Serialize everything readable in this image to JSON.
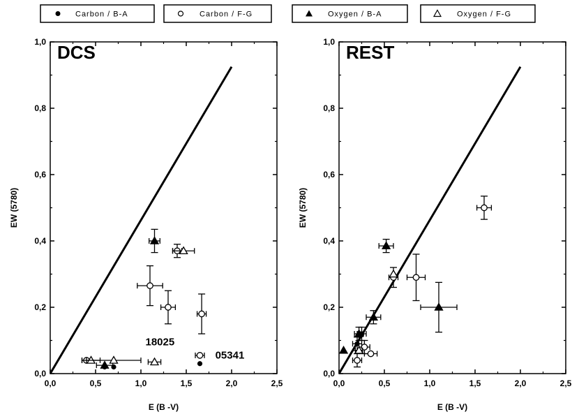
{
  "legend": [
    {
      "label": "Carbon / B-A",
      "marker": "filled-circle"
    },
    {
      "label": "Carbon / F-G",
      "marker": "open-circle"
    },
    {
      "label": "Oxygen / B-A",
      "marker": "filled-triangle"
    },
    {
      "label": "Oxygen / F-G",
      "marker": "open-triangle"
    }
  ],
  "chart_data": [
    {
      "type": "scatter",
      "title": "DCS",
      "xlabel": "E (B -V)",
      "ylabel": "EW (5780)",
      "xlim": [
        0.0,
        2.5
      ],
      "ylim": [
        0.0,
        1.0
      ],
      "xticks": [
        "0,0",
        "0,5",
        "1,0",
        "1,5",
        "2,0",
        "2,5"
      ],
      "yticks": [
        "0,0",
        "0,2",
        "0,4",
        "0,6",
        "0,8",
        "1,0"
      ],
      "line": {
        "x": [
          0.0,
          2.0
        ],
        "y": [
          0.0,
          0.925
        ]
      },
      "annotations": [
        {
          "text": "18025",
          "x": 1.05,
          "y": 0.085
        },
        {
          "text": "05341",
          "x": 1.82,
          "y": 0.045
        }
      ],
      "series": [
        {
          "name": "Carbon / B-A",
          "marker": "filled-circle",
          "points": [
            {
              "x": 0.6,
              "y": 0.02,
              "xerr": 0.0,
              "yerr": 0.0
            },
            {
              "x": 0.7,
              "y": 0.02,
              "xerr": 0.0,
              "yerr": 0.0
            },
            {
              "x": 1.65,
              "y": 0.03,
              "xerr": 0.0,
              "yerr": 0.0
            }
          ]
        },
        {
          "name": "Carbon / F-G",
          "marker": "open-circle",
          "points": [
            {
              "x": 0.4,
              "y": 0.04,
              "xerr": 0.05,
              "yerr": 0.0
            },
            {
              "x": 1.1,
              "y": 0.265,
              "xerr": 0.14,
              "yerr": 0.06
            },
            {
              "x": 1.3,
              "y": 0.2,
              "xerr": 0.08,
              "yerr": 0.05
            },
            {
              "x": 1.4,
              "y": 0.37,
              "xerr": 0.05,
              "yerr": 0.02
            },
            {
              "x": 1.67,
              "y": 0.18,
              "xerr": 0.05,
              "yerr": 0.06
            },
            {
              "x": 1.65,
              "y": 0.055,
              "xerr": 0.05,
              "yerr": 0.0
            }
          ]
        },
        {
          "name": "Oxygen / B-A",
          "marker": "filled-triangle",
          "points": [
            {
              "x": 0.6,
              "y": 0.025,
              "xerr": 0.09,
              "yerr": 0.0
            },
            {
              "x": 1.15,
              "y": 0.4,
              "xerr": 0.06,
              "yerr": 0.035
            }
          ]
        },
        {
          "name": "Oxygen / F-G",
          "marker": "open-triangle",
          "points": [
            {
              "x": 0.45,
              "y": 0.04,
              "xerr": 0.1,
              "yerr": 0.0
            },
            {
              "x": 0.7,
              "y": 0.04,
              "xerr": 0.3,
              "yerr": 0.0
            },
            {
              "x": 1.15,
              "y": 0.035,
              "xerr": 0.07,
              "yerr": 0.0
            },
            {
              "x": 1.47,
              "y": 0.37,
              "xerr": 0.12,
              "yerr": 0.0
            }
          ]
        }
      ]
    },
    {
      "type": "scatter",
      "title": "REST",
      "xlabel": "E (B -V)",
      "ylabel": "EW (5780)",
      "xlim": [
        0.0,
        2.5
      ],
      "ylim": [
        0.0,
        1.0
      ],
      "xticks": [
        "0,0",
        "0,5",
        "1,0",
        "1,5",
        "2,0",
        "2,5"
      ],
      "yticks": [
        "0,0",
        "0,2",
        "0,4",
        "0,6",
        "0,8",
        "1,0"
      ],
      "line": {
        "x": [
          0.0,
          2.0
        ],
        "y": [
          0.0,
          0.925
        ]
      },
      "annotations": [],
      "series": [
        {
          "name": "Carbon / B-A",
          "marker": "filled-circle",
          "points": [
            {
              "x": 0.2,
              "y": 0.09,
              "xerr": 0.05,
              "yerr": 0.02
            },
            {
              "x": 0.25,
              "y": 0.12,
              "xerr": 0.05,
              "yerr": 0.02
            }
          ]
        },
        {
          "name": "Carbon / F-G",
          "marker": "open-circle",
          "points": [
            {
              "x": 0.2,
              "y": 0.04,
              "xerr": 0.05,
              "yerr": 0.02
            },
            {
              "x": 0.28,
              "y": 0.08,
              "xerr": 0.06,
              "yerr": 0.02
            },
            {
              "x": 0.35,
              "y": 0.06,
              "xerr": 0.07,
              "yerr": 0.0
            },
            {
              "x": 0.6,
              "y": 0.29,
              "xerr": 0.05,
              "yerr": 0.03
            },
            {
              "x": 0.85,
              "y": 0.29,
              "xerr": 0.1,
              "yerr": 0.07
            },
            {
              "x": 1.6,
              "y": 0.5,
              "xerr": 0.08,
              "yerr": 0.035
            }
          ]
        },
        {
          "name": "Oxygen / B-A",
          "marker": "filled-triangle",
          "points": [
            {
              "x": 0.05,
              "y": 0.07,
              "xerr": 0.0,
              "yerr": 0.0
            },
            {
              "x": 0.22,
              "y": 0.12,
              "xerr": 0.05,
              "yerr": 0.02
            },
            {
              "x": 0.38,
              "y": 0.17,
              "xerr": 0.08,
              "yerr": 0.02
            },
            {
              "x": 0.52,
              "y": 0.385,
              "xerr": 0.08,
              "yerr": 0.02
            },
            {
              "x": 1.1,
              "y": 0.2,
              "xerr": 0.2,
              "yerr": 0.075
            }
          ]
        },
        {
          "name": "Oxygen / F-G",
          "marker": "open-triangle",
          "points": [
            {
              "x": 0.22,
              "y": 0.07,
              "xerr": 0.04,
              "yerr": 0.0
            },
            {
              "x": 0.6,
              "y": 0.3,
              "xerr": 0.0,
              "yerr": 0.0
            }
          ]
        }
      ]
    }
  ]
}
